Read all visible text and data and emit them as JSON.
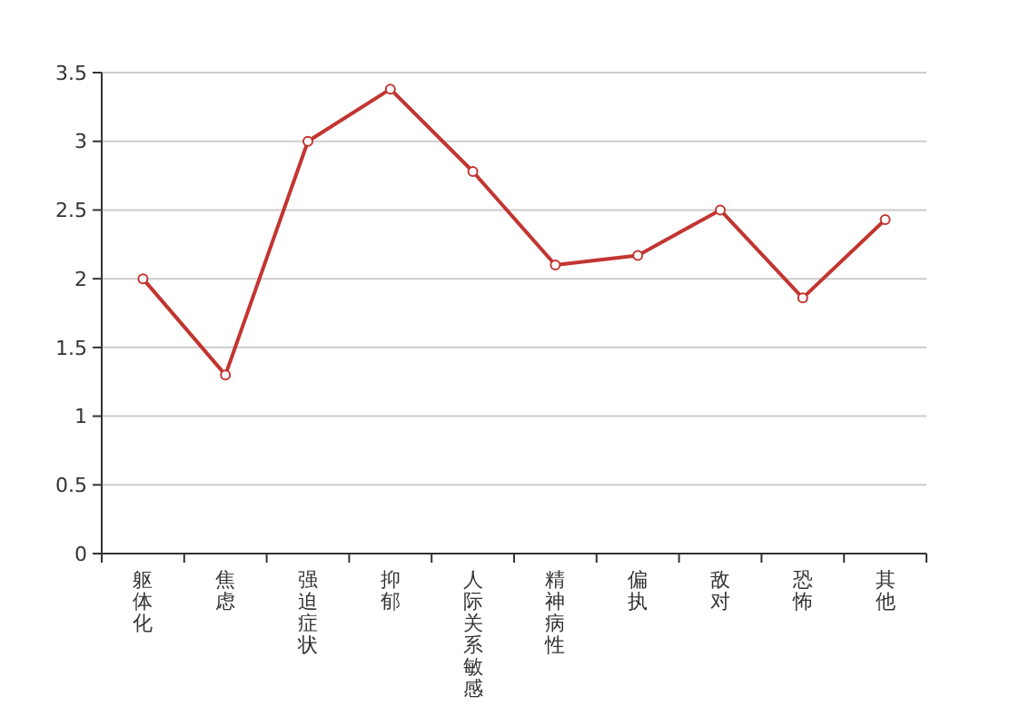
{
  "chart_data": {
    "type": "line",
    "categories": [
      "躯体化",
      "焦虑",
      "强迫症状",
      "抑郁",
      "人际关系敏感",
      "精神病性",
      "偏执",
      "敌对",
      "恐怖",
      "其他"
    ],
    "series": [
      {
        "color": "#c23531",
        "values": [
          2.0,
          1.3,
          3.0,
          3.38,
          2.78,
          2.1,
          2.17,
          2.5,
          1.86,
          2.43
        ]
      }
    ],
    "ylim": [
      0,
      3.5
    ],
    "yticks": [
      0,
      0.5,
      1,
      1.5,
      2,
      2.5,
      3,
      3.5
    ],
    "grid": "y",
    "marker": "circle",
    "line_style": "solid"
  }
}
